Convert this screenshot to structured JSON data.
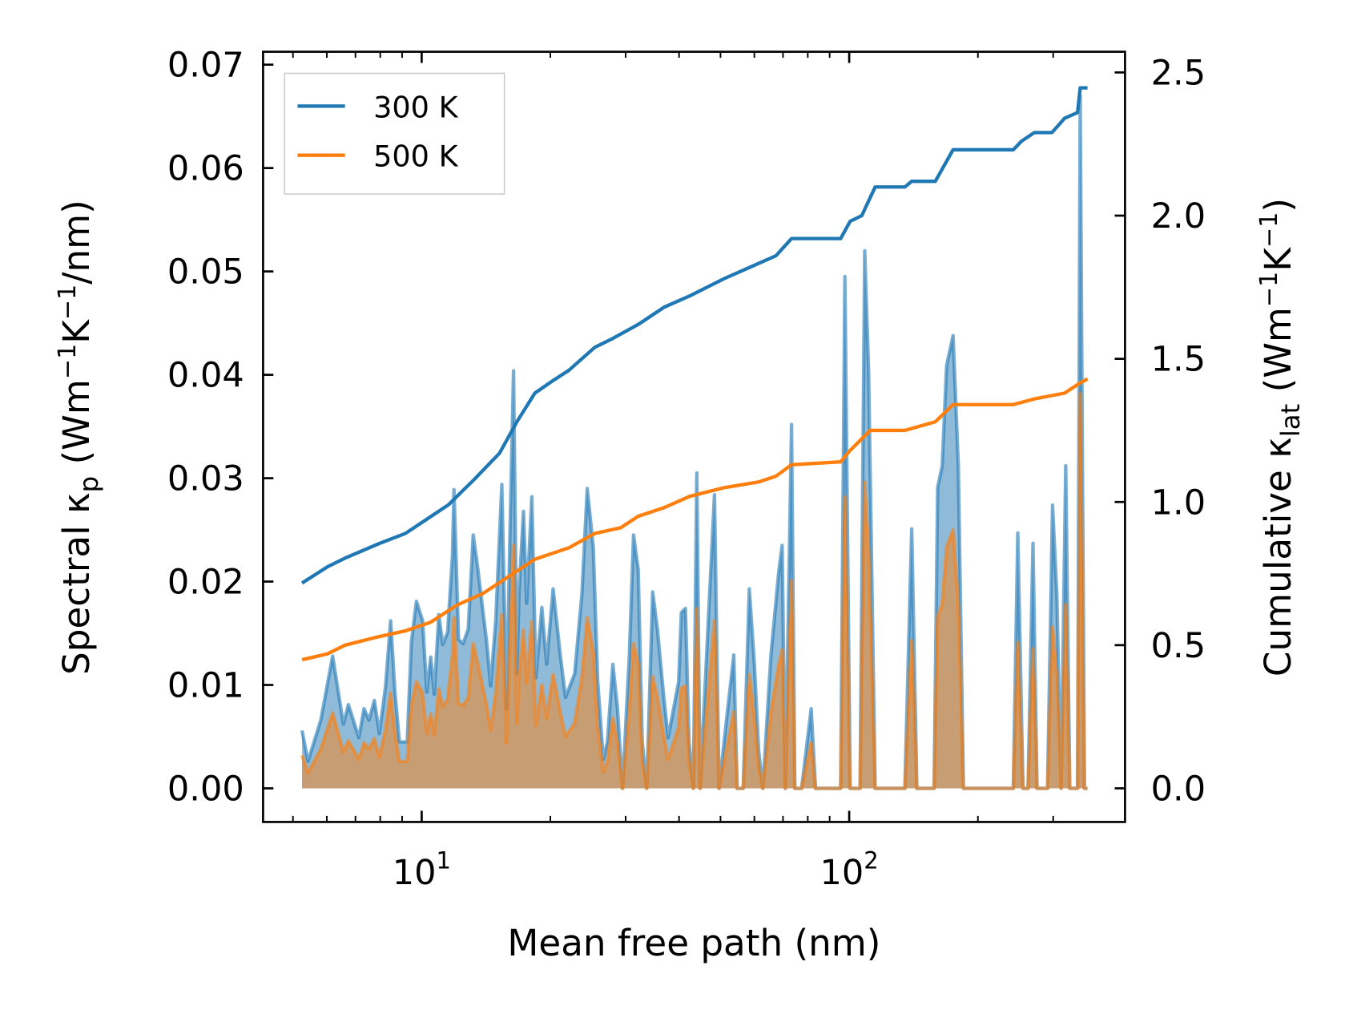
{
  "chart_data": {
    "type": "line",
    "xlabel": "Mean free path (nm)",
    "xscale": "log",
    "xlim": [
      4.5,
      400
    ],
    "x_ticks": [
      {
        "value": 10,
        "base": "10",
        "exp": "1"
      },
      {
        "value": 100,
        "base": "10",
        "exp": "2"
      }
    ],
    "ylabel_left": {
      "a": "Spectral κ",
      "sub": "p",
      "b": " (Wm",
      "sup1": "−1",
      "c": "K",
      "sup2": "−1",
      "d": "/nm)"
    },
    "ylabel_right": {
      "a": "Cumulative κ",
      "sub": "lat",
      "b": " (Wm",
      "sup1": "−1",
      "c": "K",
      "sup2": "−1",
      "d": ")"
    },
    "ylim_left": [
      -0.0033,
      0.0716
    ],
    "ylim_right": [
      -0.117,
      2.573
    ],
    "yticks_left": [
      "0.00",
      "0.01",
      "0.02",
      "0.03",
      "0.04",
      "0.05",
      "0.06",
      "0.07"
    ],
    "yticks_right": [
      "0.0",
      "0.5",
      "1.0",
      "1.5",
      "2.0",
      "2.5"
    ],
    "legend": {
      "position": "top-left",
      "entries": [
        "300 K",
        "500 K"
      ]
    },
    "colors": {
      "300 K": "#1f77b4",
      "500 K": "#ff7f0e"
    },
    "spectral": {
      "x": [
        5.25,
        5.42,
        5.81,
        6.19,
        6.56,
        6.74,
        7.13,
        7.33,
        7.53,
        7.75,
        7.96,
        8.23,
        8.46,
        8.66,
        8.87,
        9.25,
        9.46,
        9.72,
        10.05,
        10.28,
        10.5,
        10.7,
        10.97,
        11.2,
        11.5,
        11.8,
        11.9,
        12.2,
        12.5,
        12.85,
        13.2,
        13.5,
        13.8,
        14.2,
        14.5,
        14.9,
        15.4,
        15.8,
        16.1,
        16.4,
        16.7,
        16.9,
        17.3,
        17.6,
        18.1,
        18.5,
        19.1,
        19.6,
        20.3,
        21.1,
        21.7,
        22.8,
        23.7,
        24.4,
        25.2,
        25.8,
        26.6,
        27.2,
        28.0,
        28.7,
        29.5,
        30.6,
        31.3,
        32.1,
        32.8,
        33.6,
        34.7,
        35.6,
        36.7,
        37.7,
        39.9,
        40.5,
        41.4,
        42.2,
        43.2,
        44.0,
        44.8,
        48.4,
        49.6,
        51.5,
        53.7,
        54.7,
        56.5,
        58.4,
        60.0,
        61.4,
        62.8,
        65.6,
        68.4,
        69.7,
        70.9,
        73.3,
        74.6,
        77.4,
        81.5,
        83.4,
        95.5,
        97.7,
        100.5,
        106,
        108.7,
        111,
        115,
        135,
        140,
        144,
        158,
        161,
        165,
        169,
        175,
        180,
        185,
        242,
        248,
        255,
        262,
        269,
        275,
        291,
        299,
        306,
        313,
        321,
        328,
        342,
        347,
        355,
        361
      ],
      "series": [
        {
          "name": "300 K",
          "values": [
            0.0056,
            0.0026,
            0.0066,
            0.0128,
            0.0062,
            0.0081,
            0.0049,
            0.0077,
            0.0066,
            0.0085,
            0.0053,
            0.0098,
            0.0162,
            0.0093,
            0.0045,
            0.0045,
            0.0141,
            0.0181,
            0.0162,
            0.0093,
            0.0127,
            0.0091,
            0.0168,
            0.0139,
            0.0151,
            0.0225,
            0.0289,
            0.0144,
            0.014,
            0.0154,
            0.0245,
            0.0216,
            0.0183,
            0.0141,
            0.0099,
            0.0162,
            0.0294,
            0.0077,
            0.0254,
            0.0404,
            0.0111,
            0.019,
            0.0268,
            0.0179,
            0.0282,
            0.0107,
            0.0175,
            0.012,
            0.0193,
            0.0129,
            0.0088,
            0.0111,
            0.0188,
            0.029,
            0.0233,
            0.0104,
            0.0028,
            0.0045,
            0.012,
            0.0078,
            0,
            0.0128,
            0.0245,
            0.0212,
            0.0045,
            0,
            0.019,
            0.0154,
            0.0095,
            0.0049,
            0.0103,
            0.017,
            0.0174,
            0.0045,
            0,
            0.0305,
            0,
            0.0284,
            0,
            0.0062,
            0.0129,
            0,
            0,
            0.0193,
            0.012,
            0.0037,
            0,
            0.0129,
            0.0209,
            0.0235,
            0,
            0.0352,
            0,
            0,
            0.0077,
            0,
            0,
            0.0495,
            0,
            0,
            0.052,
            0.0404,
            0,
            0,
            0.0251,
            0,
            0,
            0.0291,
            0.0312,
            0.0409,
            0.0438,
            0.0312,
            0,
            0,
            0.0247,
            0,
            0,
            0.0237,
            0,
            0,
            0.0274,
            0.0187,
            0,
            0.0312,
            0,
            0,
            0.067,
            0,
            0
          ]
        },
        {
          "name": "500 K",
          "values": [
            0.0032,
            0.0015,
            0.0038,
            0.0073,
            0.0035,
            0.0046,
            0.0028,
            0.0044,
            0.0038,
            0.0048,
            0.003,
            0.0056,
            0.0092,
            0.0053,
            0.0026,
            0.0026,
            0.008,
            0.0103,
            0.0092,
            0.0053,
            0.0072,
            0.0052,
            0.0096,
            0.0079,
            0.0086,
            0.0128,
            0.0165,
            0.0082,
            0.008,
            0.0088,
            0.014,
            0.0123,
            0.0104,
            0.008,
            0.0056,
            0.0092,
            0.0168,
            0.0044,
            0.0145,
            0.0235,
            0.0063,
            0.0108,
            0.0153,
            0.0102,
            0.0161,
            0.0061,
            0.01,
            0.0068,
            0.011,
            0.0074,
            0.005,
            0.0063,
            0.0107,
            0.0165,
            0.0133,
            0.0059,
            0.0016,
            0.0026,
            0.0068,
            0.0044,
            0,
            0.0073,
            0.014,
            0.0121,
            0.0026,
            0,
            0.0108,
            0.0088,
            0.0054,
            0.0028,
            0.0059,
            0.0097,
            0.0099,
            0.0026,
            0,
            0.0174,
            0,
            0.0162,
            0,
            0.0035,
            0.0074,
            0,
            0,
            0.011,
            0.0068,
            0.0021,
            0,
            0.0074,
            0.0119,
            0.0134,
            0,
            0.0201,
            0,
            0,
            0.0044,
            0,
            0,
            0.0282,
            0,
            0,
            0.0296,
            0.023,
            0,
            0,
            0.0143,
            0,
            0,
            0.0166,
            0.0178,
            0.0233,
            0.025,
            0.0178,
            0,
            0,
            0.0141,
            0,
            0,
            0.0135,
            0,
            0,
            0.0156,
            0.0107,
            0,
            0.0178,
            0,
            0,
            0.0382,
            0,
            0
          ]
        }
      ]
    },
    "cumulative": [
      {
        "name": "300 K",
        "x": [
          5.25,
          6.03,
          6.62,
          7.96,
          9.16,
          10.05,
          11.55,
          13.3,
          15.2,
          16.7,
          18.4,
          20.1,
          22.1,
          25.4,
          27.9,
          32.1,
          36.9,
          42.4,
          51.0,
          58.6,
          67.4,
          73.3,
          95.5,
          100.5,
          107,
          115,
          135,
          140,
          159,
          175,
          242,
          253,
          271,
          298,
          319,
          342,
          347,
          361
        ],
        "values": [
          0.717,
          0.774,
          0.804,
          0.855,
          0.89,
          0.93,
          0.99,
          1.08,
          1.17,
          1.28,
          1.38,
          1.42,
          1.46,
          1.54,
          1.57,
          1.62,
          1.68,
          1.72,
          1.78,
          1.82,
          1.86,
          1.92,
          1.92,
          1.98,
          2.0,
          2.1,
          2.1,
          2.12,
          2.12,
          2.23,
          2.23,
          2.26,
          2.29,
          2.29,
          2.34,
          2.36,
          2.446,
          2.446
        ]
      },
      {
        "name": "500 K",
        "x": [
          5.25,
          6.03,
          6.62,
          7.96,
          9.16,
          10.5,
          12.1,
          13.9,
          16.0,
          18.4,
          22.1,
          25.4,
          29.2,
          32.1,
          36.9,
          42.4,
          51.0,
          61.4,
          67.4,
          73.3,
          95.5,
          100.5,
          112,
          135,
          159,
          175,
          242,
          271,
          319,
          342,
          361
        ],
        "values": [
          0.449,
          0.47,
          0.5,
          0.53,
          0.55,
          0.58,
          0.64,
          0.68,
          0.74,
          0.8,
          0.84,
          0.89,
          0.91,
          0.95,
          0.98,
          1.02,
          1.05,
          1.07,
          1.09,
          1.13,
          1.14,
          1.18,
          1.25,
          1.25,
          1.28,
          1.34,
          1.34,
          1.36,
          1.38,
          1.41,
          1.43
        ]
      }
    ]
  }
}
